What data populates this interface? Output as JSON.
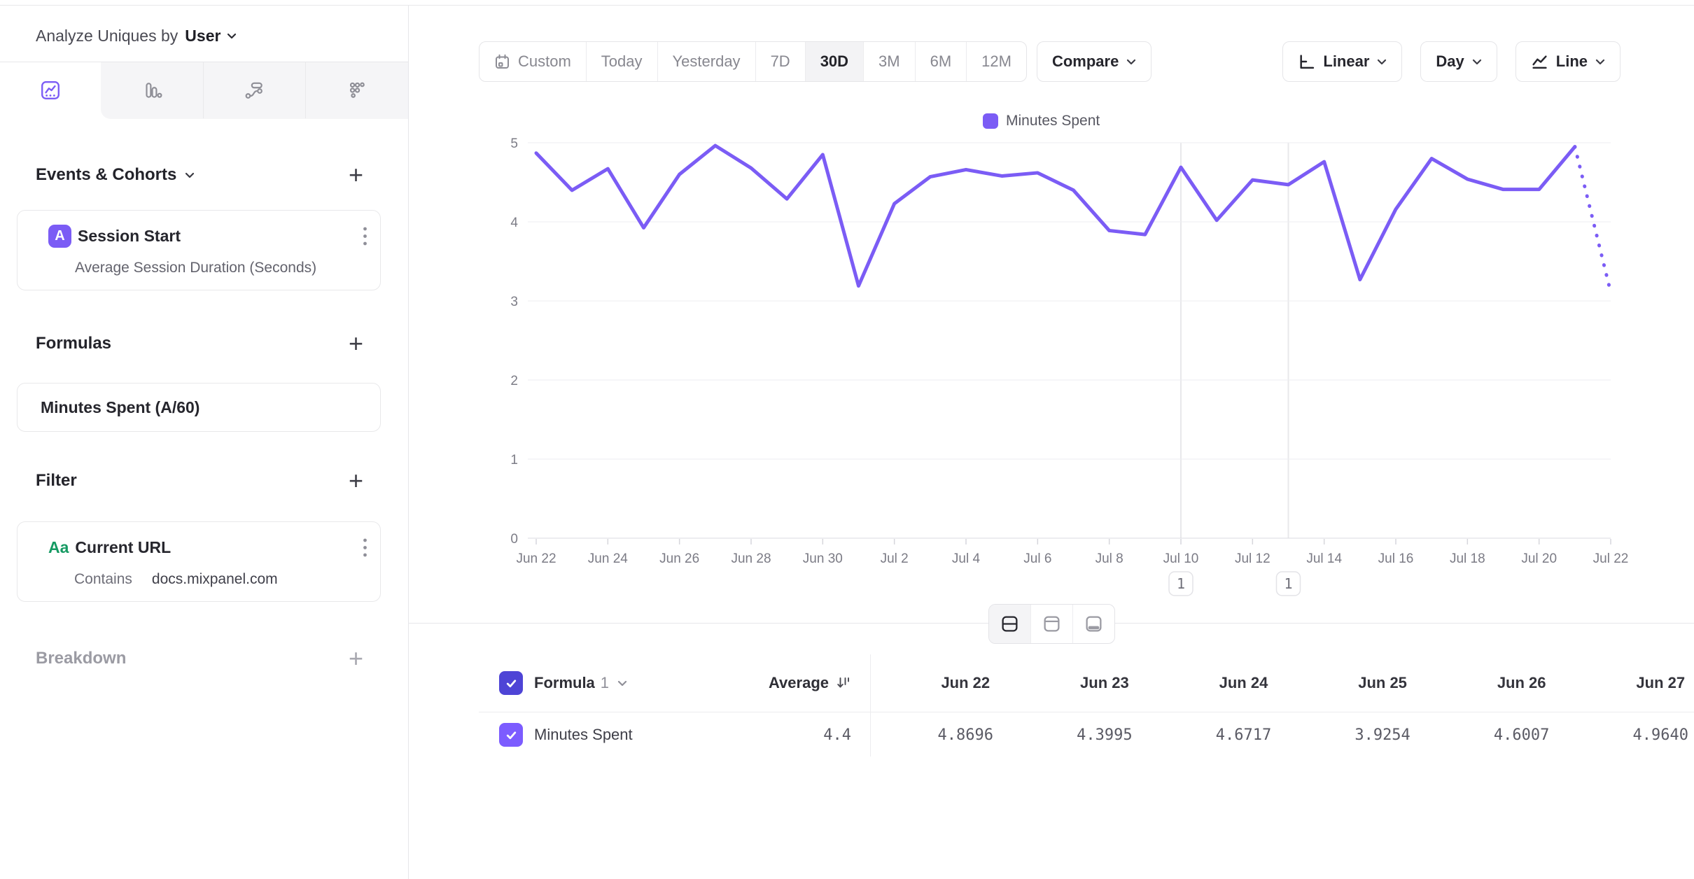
{
  "colors": {
    "accent": "#7b5cf5",
    "header_checkbox": "#4e44d6",
    "row_checkbox": "#7c5cff",
    "green": "#169a63"
  },
  "sidebar": {
    "analyze_prefix": "Analyze Uniques by",
    "analyze_value": "User",
    "events_title": "Events & Cohorts",
    "event_card": {
      "badge": "A",
      "title": "Session Start",
      "measurement": "Average Session Duration (Seconds)"
    },
    "formulas_title": "Formulas",
    "formula_card": {
      "title": "Minutes Spent (A/60)"
    },
    "filter_title": "Filter",
    "filter_card": {
      "badge": "Aa",
      "title": "Current URL",
      "operator": "Contains",
      "value": "docs.mixpanel.com"
    },
    "breakdown_title": "Breakdown"
  },
  "toolbar": {
    "date_ranges": [
      "Custom",
      "Today",
      "Yesterday",
      "7D",
      "30D",
      "3M",
      "6M",
      "12M"
    ],
    "selected_range": "30D",
    "compare": "Compare",
    "scale": "Linear",
    "interval": "Day",
    "chart_type": "Line"
  },
  "chart_data": {
    "type": "line",
    "x": [
      "Jun 22",
      "Jun 23",
      "Jun 24",
      "Jun 25",
      "Jun 26",
      "Jun 27",
      "Jun 28",
      "Jun 29",
      "Jun 30",
      "Jul 1",
      "Jul 2",
      "Jul 3",
      "Jul 4",
      "Jul 5",
      "Jul 6",
      "Jul 7",
      "Jul 8",
      "Jul 9",
      "Jul 10",
      "Jul 11",
      "Jul 12",
      "Jul 13",
      "Jul 14",
      "Jul 15",
      "Jul 16",
      "Jul 17",
      "Jul 18",
      "Jul 19",
      "Jul 20",
      "Jul 21",
      "Jul 22"
    ],
    "series": [
      {
        "name": "Minutes Spent",
        "color": "#7b5cf5",
        "values": [
          4.8696,
          4.3995,
          4.6717,
          3.9254,
          4.6007,
          4.964,
          4.68,
          4.29,
          4.85,
          3.19,
          4.23,
          4.57,
          4.66,
          4.58,
          4.62,
          4.4,
          3.89,
          3.84,
          4.69,
          4.02,
          4.53,
          4.47,
          4.76,
          3.27,
          4.16,
          4.8,
          4.54,
          4.41,
          4.41,
          4.95,
          3.11
        ]
      }
    ],
    "ylim": [
      0,
      5
    ],
    "yticks": [
      0,
      1,
      2,
      3,
      4,
      5
    ],
    "x_tick_step": 2,
    "grid": true,
    "legend_position": "top-center",
    "dashed_tail_points": 1,
    "annotations": [
      {
        "index": 18,
        "label": "1"
      },
      {
        "index": 21,
        "label": "1"
      }
    ]
  },
  "table": {
    "header": {
      "formula_label": "Formula",
      "formula_number": "1",
      "average_label": "Average",
      "checked": true
    },
    "columns": [
      "Jun 22",
      "Jun 23",
      "Jun 24",
      "Jun 25",
      "Jun 26",
      "Jun 27"
    ],
    "row": {
      "label": "Minutes Spent",
      "average": "4.4",
      "values": [
        "4.8696",
        "4.3995",
        "4.6717",
        "3.9254",
        "4.6007",
        "4.9640"
      ],
      "checked": true
    }
  }
}
